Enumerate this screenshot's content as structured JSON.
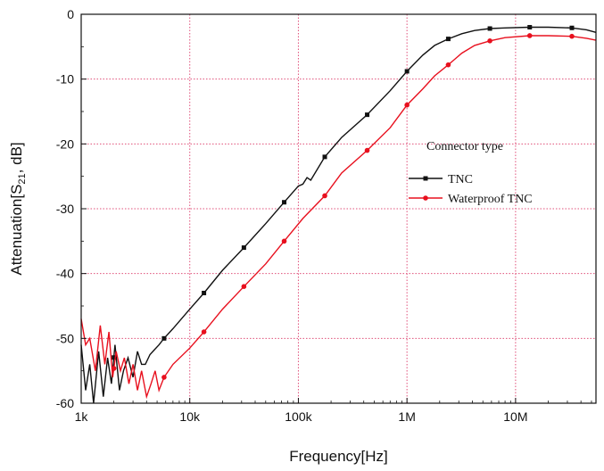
{
  "chart_data": {
    "type": "line",
    "xlabel": "Frequency[Hz]",
    "ylabel_parts": [
      "Attenuation[S",
      "21",
      ", dB]"
    ],
    "x_scale": "log",
    "xlim": [
      1000,
      55000000
    ],
    "ylim": [
      -60,
      0
    ],
    "x_ticks": [
      1000,
      10000,
      100000,
      1000000,
      10000000
    ],
    "x_tick_labels": [
      "1k",
      "10k",
      "100k",
      "1M",
      "10M"
    ],
    "y_ticks": [
      0,
      -10,
      -20,
      -30,
      -40,
      -50,
      -60
    ],
    "y_tick_labels": [
      "0",
      "-10",
      "-20",
      "-30",
      "-40",
      "-50",
      "-60"
    ],
    "grid": true,
    "legend": {
      "title": "Connector type",
      "placement": "right-center"
    },
    "series": [
      {
        "name": "TNC",
        "color": "#111111",
        "marker": "square",
        "markers_x": [
          2000,
          5800,
          13500,
          31500,
          74000,
          175000,
          430000,
          1000000,
          2400000,
          5800000,
          13500000,
          33000000
        ],
        "x": [
          1000,
          1100,
          1200,
          1300,
          1450,
          1600,
          1750,
          1900,
          2050,
          2250,
          2450,
          2700,
          3000,
          3300,
          3600,
          3900,
          4300,
          4700,
          5200,
          5800,
          7000,
          10000,
          13500,
          20000,
          31500,
          50000,
          74000,
          100000,
          110000,
          120000,
          130000,
          175000,
          250000,
          430000,
          700000,
          1000000,
          1400000,
          1800000,
          2400000,
          3200000,
          4200000,
          5800000,
          8000000,
          13500000,
          20000000,
          33000000,
          45000000,
          55000000
        ],
        "y": [
          -51,
          -58,
          -54,
          -60,
          -52,
          -59,
          -53,
          -57,
          -51,
          -58,
          -55,
          -53,
          -56,
          -52,
          -54,
          -54,
          -52.5,
          -51.8,
          -51,
          -50,
          -48.5,
          -45.5,
          -43,
          -39.5,
          -36,
          -32.3,
          -29,
          -26.5,
          -26.2,
          -25.2,
          -25.6,
          -22,
          -19,
          -15.5,
          -11.8,
          -8.8,
          -6.3,
          -4.8,
          -3.8,
          -3.0,
          -2.5,
          -2.2,
          -2.1,
          -2.0,
          -2.0,
          -2.1,
          -2.4,
          -2.8
        ]
      },
      {
        "name": "Waterproof TNC",
        "color": "#e8101e",
        "marker": "circle",
        "markers_x": [
          2000,
          5800,
          13500,
          31500,
          74000,
          175000,
          430000,
          1000000,
          2400000,
          5800000,
          13500000,
          33000000
        ],
        "x": [
          1000,
          1100,
          1200,
          1350,
          1500,
          1650,
          1800,
          1950,
          2100,
          2300,
          2500,
          2750,
          3000,
          3300,
          3600,
          4000,
          4400,
          4800,
          5200,
          5800,
          7000,
          10000,
          13500,
          20000,
          31500,
          50000,
          74000,
          110000,
          175000,
          250000,
          430000,
          700000,
          1000000,
          1400000,
          1800000,
          2400000,
          3200000,
          4200000,
          5800000,
          8000000,
          13500000,
          20000000,
          33000000,
          45000000,
          55000000
        ],
        "y": [
          -47,
          -51,
          -50,
          -55,
          -48,
          -54,
          -49,
          -56,
          -52,
          -55,
          -53,
          -57,
          -54,
          -58,
          -55,
          -59,
          -57,
          -55,
          -58,
          -56,
          -54,
          -51.5,
          -49,
          -45.5,
          -42,
          -38.5,
          -35,
          -31.5,
          -28,
          -24.5,
          -21,
          -17.5,
          -14,
          -11.5,
          -9.5,
          -7.8,
          -6.0,
          -4.8,
          -4.1,
          -3.6,
          -3.3,
          -3.3,
          -3.4,
          -3.7,
          -4.0
        ]
      }
    ]
  }
}
